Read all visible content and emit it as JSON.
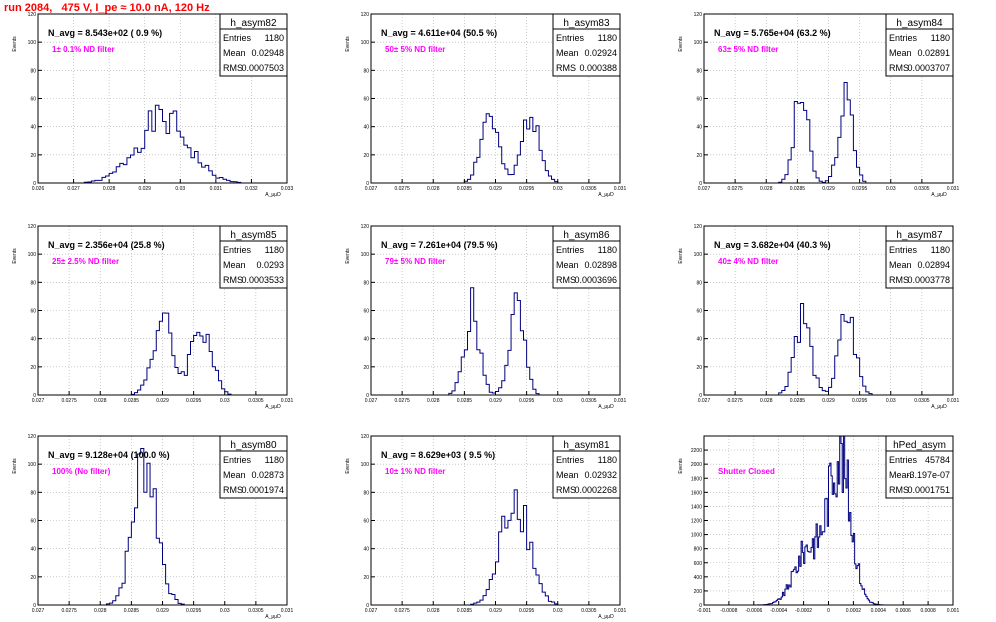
{
  "page": {
    "title": "run 2084,   475 V, I_pe ≈ 10.0 nA, 120 Hz",
    "colors": {
      "title": "#ff0000",
      "histogram_line": "#000080",
      "annotation": "#ff00ff",
      "grid": "#aaaaaa",
      "frame": "#000000"
    }
  },
  "chart_data": [
    {
      "type": "histogram",
      "name": "h_asym82",
      "stats": {
        "entries_label": "Entries",
        "entries": "1180",
        "mean_label": "Mean",
        "mean": "0.02948",
        "rms_label": "RMS",
        "rms": "0.0007503"
      },
      "headline": "N_avg = 8.543e+02 ( 0.9 %)",
      "annotation": "1± 0.1% ND filter",
      "ylabel": "Events",
      "xlabel": "A_μμD",
      "xlim": [
        0.026,
        0.033
      ],
      "ylim": [
        0,
        120
      ],
      "xticks": [
        0.026,
        0.027,
        0.028,
        0.029,
        0.03,
        0.031,
        0.032,
        0.033
      ],
      "xtick_labels": [
        "0.026",
        "0.027",
        "0.028",
        "0.029",
        "0.03",
        "0.031",
        "0.032",
        "0.033"
      ],
      "yticks": [
        0,
        20,
        40,
        60,
        80,
        100,
        120
      ],
      "grid": true,
      "peaks": [
        {
          "center": 0.0295,
          "sigma": 0.00072,
          "height": 45
        }
      ],
      "bin_width": 0.0001,
      "seed": 1
    },
    {
      "type": "histogram",
      "name": "h_asym83",
      "stats": {
        "entries_label": "Entries",
        "entries": "1180",
        "mean_label": "Mean",
        "mean": "0.02924",
        "rms_label": "RMS",
        "rms": "0.000388"
      },
      "headline": "N_avg = 4.611e+04 (50.5 %)",
      "annotation": "50± 5% ND filter",
      "ylabel": "Events",
      "xlabel": "A_μμD",
      "xlim": [
        0.027,
        0.031
      ],
      "ylim": [
        0,
        120
      ],
      "xticks": [
        0.027,
        0.0275,
        0.028,
        0.0285,
        0.029,
        0.0295,
        0.03,
        0.0305,
        0.031
      ],
      "xtick_labels": [
        "0.027",
        "0.0275",
        "0.028",
        "0.0285",
        "0.029",
        "0.0295",
        "0.03",
        "0.0305",
        "0.031"
      ],
      "yticks": [
        0,
        20,
        40,
        60,
        80,
        100,
        120
      ],
      "grid": true,
      "peaks": [
        {
          "center": 0.0289,
          "sigma": 0.00014,
          "height": 48
        },
        {
          "center": 0.02958,
          "sigma": 0.00014,
          "height": 52
        }
      ],
      "bin_width": 5e-05,
      "seed": 2
    },
    {
      "type": "histogram",
      "name": "h_asym84",
      "stats": {
        "entries_label": "Entries",
        "entries": "1180",
        "mean_label": "Mean",
        "mean": "0.02891",
        "rms_label": "RMS",
        "rms": "0.0003707"
      },
      "headline": "N_avg = 5.765e+04 (63.2 %)",
      "annotation": "63± 5% ND filter",
      "ylabel": "Events",
      "xlabel": "A_μμD",
      "xlim": [
        0.027,
        0.031
      ],
      "ylim": [
        0,
        120
      ],
      "xticks": [
        0.027,
        0.0275,
        0.028,
        0.0285,
        0.029,
        0.0295,
        0.03,
        0.0305,
        0.031
      ],
      "xtick_labels": [
        "0.027",
        "0.0275",
        "0.028",
        "0.0285",
        "0.029",
        "0.0295",
        "0.03",
        "0.0305",
        "0.031"
      ],
      "yticks": [
        0,
        20,
        40,
        60,
        80,
        100,
        120
      ],
      "grid": true,
      "peaks": [
        {
          "center": 0.02856,
          "sigma": 0.00011,
          "height": 62
        },
        {
          "center": 0.02928,
          "sigma": 0.00011,
          "height": 60
        }
      ],
      "bin_width": 5e-05,
      "seed": 3
    },
    {
      "type": "histogram",
      "name": "h_asym85",
      "stats": {
        "entries_label": "Entries",
        "entries": "1180",
        "mean_label": "Mean",
        "mean": "0.0293",
        "rms_label": "RMS",
        "rms": "0.0003533"
      },
      "headline": "N_avg = 2.356e+04 (25.8 %)",
      "annotation": "25± 2.5% ND filter",
      "ylabel": "Events",
      "xlabel": "A_μμD",
      "xlim": [
        0.027,
        0.031
      ],
      "ylim": [
        0,
        120
      ],
      "xticks": [
        0.027,
        0.0275,
        0.028,
        0.0285,
        0.029,
        0.0295,
        0.03,
        0.0305,
        0.031
      ],
      "xtick_labels": [
        "0.027",
        "0.0275",
        "0.028",
        "0.0285",
        "0.029",
        "0.0295",
        "0.03",
        "0.0305",
        "0.031"
      ],
      "yticks": [
        0,
        20,
        40,
        60,
        80,
        100,
        120
      ],
      "grid": true,
      "peaks": [
        {
          "center": 0.029,
          "sigma": 0.00016,
          "height": 52
        },
        {
          "center": 0.02962,
          "sigma": 0.00016,
          "height": 50
        }
      ],
      "bin_width": 5e-05,
      "seed": 4
    },
    {
      "type": "histogram",
      "name": "h_asym86",
      "stats": {
        "entries_label": "Entries",
        "entries": "1180",
        "mean_label": "Mean",
        "mean": "0.02898",
        "rms_label": "RMS",
        "rms": "0.0003696"
      },
      "headline": "N_avg = 7.261e+04 (79.5 %)",
      "annotation": "79± 5% ND filter",
      "ylabel": "Events",
      "xlabel": "A_μμD",
      "xlim": [
        0.027,
        0.031
      ],
      "ylim": [
        0,
        120
      ],
      "xticks": [
        0.027,
        0.0275,
        0.028,
        0.0285,
        0.029,
        0.0295,
        0.03,
        0.0305,
        0.031
      ],
      "xtick_labels": [
        "0.027",
        "0.0275",
        "0.028",
        "0.0285",
        "0.029",
        "0.0295",
        "0.03",
        "0.0305",
        "0.031"
      ],
      "yticks": [
        0,
        20,
        40,
        60,
        80,
        100,
        120
      ],
      "grid": true,
      "peaks": [
        {
          "center": 0.02862,
          "sigma": 0.00012,
          "height": 60
        },
        {
          "center": 0.02934,
          "sigma": 0.00012,
          "height": 60
        }
      ],
      "bin_width": 5e-05,
      "seed": 5
    },
    {
      "type": "histogram",
      "name": "h_asym87",
      "stats": {
        "entries_label": "Entries",
        "entries": "1180",
        "mean_label": "Mean",
        "mean": "0.02894",
        "rms_label": "RMS",
        "rms": "0.0003778"
      },
      "headline": "N_avg = 3.682e+04 (40.3 %)",
      "annotation": "40± 4% ND filter",
      "ylabel": "Events",
      "xlabel": "A_μμD",
      "xlim": [
        0.027,
        0.031
      ],
      "ylim": [
        0,
        120
      ],
      "xticks": [
        0.027,
        0.0275,
        0.028,
        0.0285,
        0.029,
        0.0295,
        0.03,
        0.0305,
        0.031
      ],
      "xtick_labels": [
        "0.027",
        "0.0275",
        "0.028",
        "0.0285",
        "0.029",
        "0.0295",
        "0.03",
        "0.0305",
        "0.031"
      ],
      "yticks": [
        0,
        20,
        40,
        60,
        80,
        100,
        120
      ],
      "grid": true,
      "peaks": [
        {
          "center": 0.02858,
          "sigma": 0.00013,
          "height": 56
        },
        {
          "center": 0.0293,
          "sigma": 0.00013,
          "height": 56
        }
      ],
      "bin_width": 5e-05,
      "seed": 6
    },
    {
      "type": "histogram",
      "name": "h_asym80",
      "stats": {
        "entries_label": "Entries",
        "entries": "1180",
        "mean_label": "Mean",
        "mean": "0.02873",
        "rms_label": "RMS",
        "rms": "0.0001974"
      },
      "headline": "N_avg = 9.128e+04 (100.0 %)",
      "annotation": "100% (No filter)",
      "ylabel": "Events",
      "xlabel": "A_μμD",
      "xlim": [
        0.027,
        0.031
      ],
      "ylim": [
        0,
        120
      ],
      "xticks": [
        0.027,
        0.0275,
        0.028,
        0.0285,
        0.029,
        0.0295,
        0.03,
        0.0305,
        0.031
      ],
      "xtick_labels": [
        "0.027",
        "0.0275",
        "0.028",
        "0.0285",
        "0.029",
        "0.0295",
        "0.03",
        "0.0305",
        "0.031"
      ],
      "yticks": [
        0,
        20,
        40,
        60,
        80,
        100,
        120
      ],
      "grid": true,
      "peaks": [
        {
          "center": 0.02872,
          "sigma": 0.00019,
          "height": 105
        }
      ],
      "bin_width": 5e-05,
      "seed": 7
    },
    {
      "type": "histogram",
      "name": "h_asym81",
      "stats": {
        "entries_label": "Entries",
        "entries": "1180",
        "mean_label": "Mean",
        "mean": "0.02932",
        "rms_label": "RMS",
        "rms": "0.0002268"
      },
      "headline": "N_avg = 8.629e+03 ( 9.5 %)",
      "annotation": "10± 1% ND filter",
      "ylabel": "Events",
      "xlabel": "A_μμD",
      "xlim": [
        0.027,
        0.031
      ],
      "ylim": [
        0,
        120
      ],
      "xticks": [
        0.027,
        0.0275,
        0.028,
        0.0285,
        0.029,
        0.0295,
        0.03,
        0.0305,
        0.031
      ],
      "xtick_labels": [
        "0.027",
        "0.0275",
        "0.028",
        "0.0285",
        "0.029",
        "0.0295",
        "0.03",
        "0.0305",
        "0.031"
      ],
      "yticks": [
        0,
        20,
        40,
        60,
        80,
        100,
        120
      ],
      "grid": true,
      "peaks": [
        {
          "center": 0.02932,
          "sigma": 0.00022,
          "height": 80
        }
      ],
      "bin_width": 5e-05,
      "seed": 8
    },
    {
      "type": "histogram",
      "name": "hPed_asym",
      "stats": {
        "entries_label": "Entries",
        "entries": "45784",
        "mean_label": "Mean",
        "mean": "-3.197e-07",
        "rms_label": "RMS",
        "rms": "0.0001751"
      },
      "headline": "",
      "annotation": "Shutter Closed",
      "ylabel": "Events",
      "xlabel": "",
      "xlim": [
        -0.001,
        0.001
      ],
      "ylim": [
        0,
        2400
      ],
      "xticks": [
        -0.001,
        -0.0008,
        -0.0006,
        -0.0004,
        -0.0002,
        0,
        0.0002,
        0.0004,
        0.0006,
        0.0008,
        0.001
      ],
      "xtick_labels": [
        "-0.001",
        "-0.0008",
        "-0.0006",
        "-0.0004",
        "-0.0002",
        "0",
        "0.0002",
        "0.0004",
        "0.0006",
        "0.0008",
        "0.001"
      ],
      "yticks": [
        0,
        200,
        400,
        600,
        800,
        1000,
        1200,
        1400,
        1600,
        1800,
        2000,
        2200
      ],
      "grid": true,
      "peaks": [
        {
          "center": 9e-05,
          "sigma": 9e-05,
          "height": 2100
        },
        {
          "center": -0.00016,
          "sigma": 0.00011,
          "height": 800
        }
      ],
      "bin_width": 1e-05,
      "seed": 9
    }
  ]
}
